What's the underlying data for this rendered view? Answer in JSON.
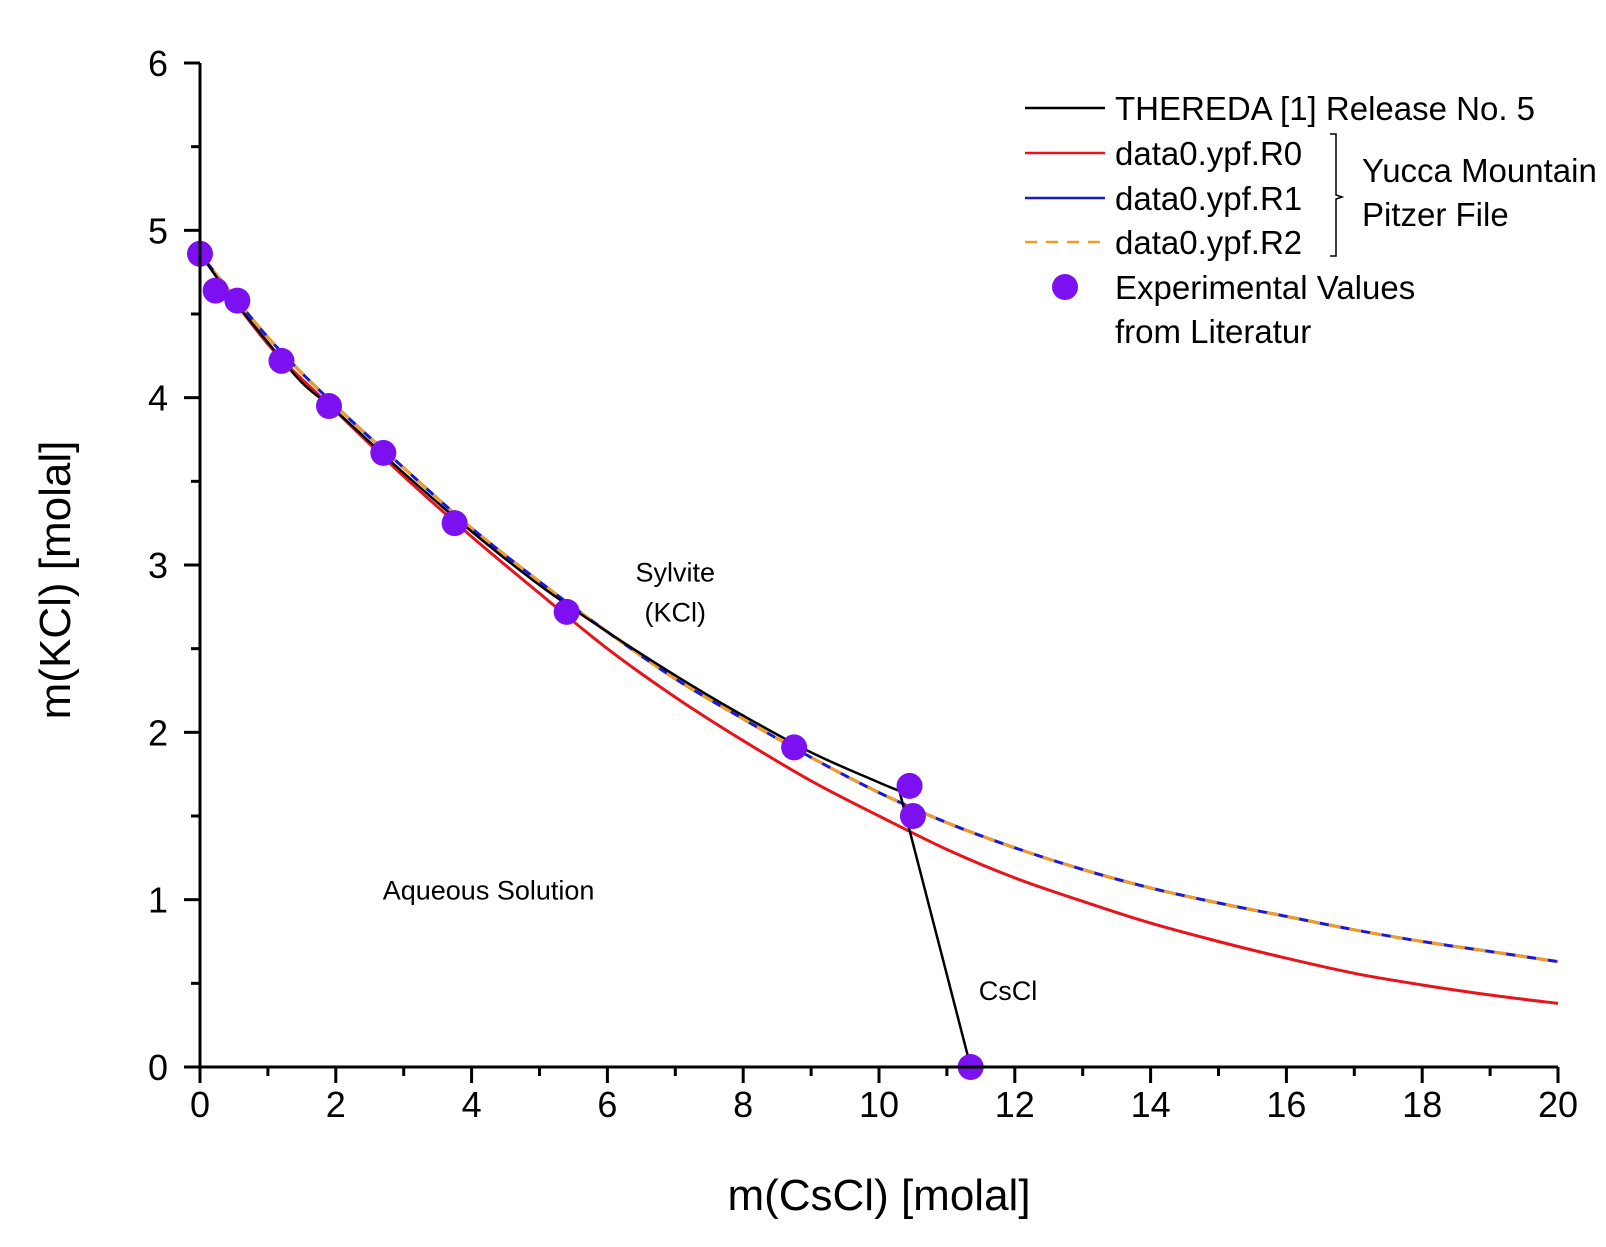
{
  "chart_data": {
    "type": "line",
    "title": "",
    "xlabel": "m(CsCl) [molal]",
    "ylabel": "m(KCl) [molal]",
    "xlim": [
      0,
      20
    ],
    "ylim": [
      0,
      6
    ],
    "xticks": [
      "0",
      "2",
      "4",
      "6",
      "8",
      "10",
      "12",
      "14",
      "16",
      "18",
      "20"
    ],
    "yticks": [
      "0",
      "1",
      "2",
      "3",
      "4",
      "5",
      "6"
    ],
    "grid": false,
    "legend_position": "top-right",
    "colors": {
      "thereda": "#000000",
      "r0": "#e8141b",
      "r1": "#1a1ad6",
      "r2": "#f39c24",
      "experimental": "#7d10f0"
    },
    "series": [
      {
        "name": "THEREDA [1] Release No. 5",
        "key": "thereda",
        "style": "solid",
        "x": [
          0,
          0.5,
          1,
          1.5,
          2,
          3,
          4,
          5,
          6,
          7,
          8,
          9,
          10,
          10.3,
          11.35
        ],
        "y": [
          4.86,
          4.58,
          4.33,
          4.09,
          3.92,
          3.55,
          3.2,
          2.88,
          2.6,
          2.34,
          2.1,
          1.88,
          1.7,
          1.65,
          0
        ]
      },
      {
        "name": "data0.ypf.R0",
        "key": "r0",
        "style": "solid",
        "x": [
          0,
          1,
          2,
          3,
          4,
          5,
          6,
          7,
          8,
          9,
          10,
          11,
          12,
          13,
          14,
          15,
          16,
          17,
          18,
          19,
          20
        ],
        "y": [
          4.86,
          4.32,
          3.92,
          3.53,
          3.17,
          2.83,
          2.5,
          2.21,
          1.95,
          1.71,
          1.5,
          1.3,
          1.13,
          0.99,
          0.86,
          0.75,
          0.65,
          0.56,
          0.49,
          0.43,
          0.38
        ]
      },
      {
        "name": "data0.ypf.R1",
        "key": "r1",
        "style": "solid",
        "x": [
          0,
          1,
          2,
          3,
          4,
          5,
          6,
          7,
          8,
          9,
          10,
          11,
          12,
          13,
          14,
          15,
          16,
          17,
          18,
          19,
          20
        ],
        "y": [
          4.86,
          4.36,
          3.95,
          3.58,
          3.22,
          2.9,
          2.6,
          2.32,
          2.08,
          1.85,
          1.64,
          1.46,
          1.31,
          1.18,
          1.07,
          0.98,
          0.9,
          0.82,
          0.75,
          0.69,
          0.63
        ]
      },
      {
        "name": "data0.ypf.R2",
        "key": "r2",
        "style": "dashed",
        "x": [
          0,
          1,
          2,
          3,
          4,
          5,
          6,
          7,
          8,
          9,
          10,
          11,
          12,
          13,
          14,
          15,
          16,
          17,
          18,
          19,
          20
        ],
        "y": [
          4.86,
          4.36,
          3.95,
          3.58,
          3.22,
          2.9,
          2.6,
          2.32,
          2.08,
          1.85,
          1.64,
          1.46,
          1.31,
          1.18,
          1.07,
          0.98,
          0.9,
          0.82,
          0.75,
          0.69,
          0.63
        ]
      }
    ],
    "points": {
      "name_line1": "Experimental Values",
      "name_line2": "from Literatur",
      "key": "experimental",
      "x": [
        0,
        0.23,
        0.55,
        1.2,
        1.9,
        2.7,
        3.75,
        5.4,
        8.75,
        10.45,
        10.5,
        11.35
      ],
      "y": [
        4.86,
        4.64,
        4.58,
        4.22,
        3.95,
        3.67,
        3.25,
        2.72,
        1.91,
        1.68,
        1.5,
        0
      ]
    },
    "legend_group": {
      "line1": "Yucca Mountain",
      "line2": "Pitzer File"
    },
    "annotations": [
      {
        "key": "sylvite",
        "lines": [
          "Sylvite",
          "(KCl)"
        ],
        "x": 7.0,
        "y": 2.9
      },
      {
        "key": "aqueous",
        "lines": [
          "Aqueous Solution"
        ],
        "x": 4.25,
        "y": 1.0
      },
      {
        "key": "cscl",
        "lines": [
          "CsCl"
        ],
        "x": 11.9,
        "y": 0.4
      }
    ]
  }
}
